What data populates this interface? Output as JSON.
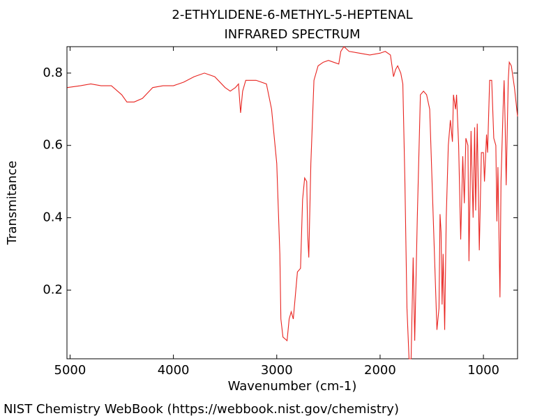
{
  "chart_data": {
    "type": "line",
    "title": "2-ETHYLIDENE-6-METHYL-5-HEPTENAL",
    "subtitle": "INFRARED SPECTRUM",
    "x_label": "Wavenumber (cm-1)",
    "y_label": "Transmitance",
    "color": "#e8231f",
    "xlim": [
      5030,
      670
    ],
    "ylim": [
      0.01,
      0.873
    ],
    "xticks": [
      5000,
      4000,
      3000,
      2000,
      1000
    ],
    "yticks": [
      0.2,
      0.4,
      0.6,
      0.8
    ],
    "x": [
      5027,
      4900,
      4800,
      4700,
      4600,
      4500,
      4450,
      4380,
      4300,
      4200,
      4100,
      4000,
      3900,
      3800,
      3700,
      3600,
      3500,
      3450,
      3400,
      3370,
      3350,
      3330,
      3300,
      3200,
      3100,
      3050,
      3000,
      2970,
      2960,
      2940,
      2900,
      2880,
      2860,
      2840,
      2800,
      2770,
      2750,
      2730,
      2710,
      2700,
      2690,
      2670,
      2640,
      2600,
      2550,
      2500,
      2450,
      2400,
      2380,
      2350,
      2300,
      2200,
      2100,
      2000,
      1950,
      1900,
      1870,
      1850,
      1830,
      1800,
      1780,
      1760,
      1740,
      1720,
      1700,
      1680,
      1665,
      1640,
      1610,
      1580,
      1550,
      1520,
      1480,
      1450,
      1430,
      1420,
      1410,
      1400,
      1390,
      1375,
      1360,
      1340,
      1320,
      1300,
      1290,
      1270,
      1260,
      1240,
      1220,
      1200,
      1185,
      1170,
      1150,
      1140,
      1120,
      1100,
      1085,
      1075,
      1060,
      1040,
      1020,
      1000,
      990,
      970,
      960,
      940,
      920,
      900,
      880,
      870,
      860,
      840,
      830,
      810,
      800,
      790,
      780,
      760,
      750,
      730,
      700,
      670
    ],
    "values": [
      0.76,
      0.765,
      0.77,
      0.765,
      0.765,
      0.74,
      0.72,
      0.72,
      0.73,
      0.76,
      0.765,
      0.765,
      0.775,
      0.79,
      0.8,
      0.79,
      0.76,
      0.75,
      0.76,
      0.77,
      0.69,
      0.75,
      0.78,
      0.78,
      0.77,
      0.7,
      0.55,
      0.3,
      0.12,
      0.07,
      0.06,
      0.12,
      0.14,
      0.12,
      0.25,
      0.26,
      0.45,
      0.51,
      0.5,
      0.35,
      0.29,
      0.55,
      0.78,
      0.82,
      0.83,
      0.835,
      0.83,
      0.825,
      0.86,
      0.873,
      0.86,
      0.855,
      0.85,
      0.855,
      0.86,
      0.85,
      0.79,
      0.81,
      0.82,
      0.8,
      0.77,
      0.5,
      0.15,
      0.01,
      0.01,
      0.29,
      0.06,
      0.4,
      0.74,
      0.75,
      0.74,
      0.7,
      0.35,
      0.09,
      0.15,
      0.41,
      0.36,
      0.16,
      0.3,
      0.09,
      0.4,
      0.6,
      0.67,
      0.61,
      0.74,
      0.7,
      0.74,
      0.6,
      0.34,
      0.57,
      0.44,
      0.62,
      0.6,
      0.28,
      0.64,
      0.4,
      0.65,
      0.42,
      0.66,
      0.31,
      0.58,
      0.58,
      0.5,
      0.63,
      0.58,
      0.78,
      0.78,
      0.62,
      0.6,
      0.39,
      0.54,
      0.18,
      0.5,
      0.7,
      0.78,
      0.66,
      0.49,
      0.78,
      0.83,
      0.82,
      0.76,
      0.68
    ]
  },
  "footer": "NIST Chemistry WebBook (https://webbook.nist.gov/chemistry)"
}
